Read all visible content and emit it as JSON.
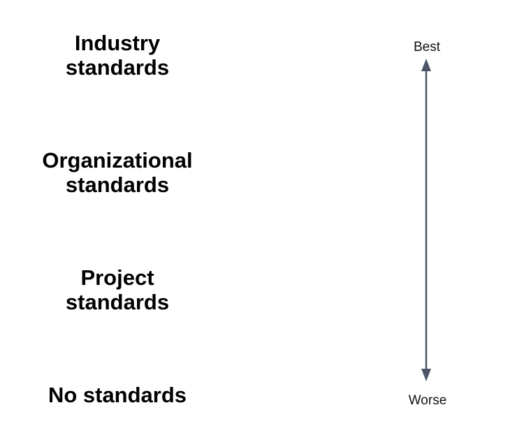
{
  "levels": [
    {
      "label": "Industry\nstandards"
    },
    {
      "label": "Organizational\nstandards"
    },
    {
      "label": "Project\nstandards"
    },
    {
      "label": "No standards"
    }
  ],
  "scale": {
    "top_label": "Best",
    "bottom_label": "Worse"
  },
  "colors": {
    "arrow": "#4a5568",
    "text": "#000000"
  },
  "icons": {
    "arrow": "double-headed-vertical-arrow-icon"
  }
}
